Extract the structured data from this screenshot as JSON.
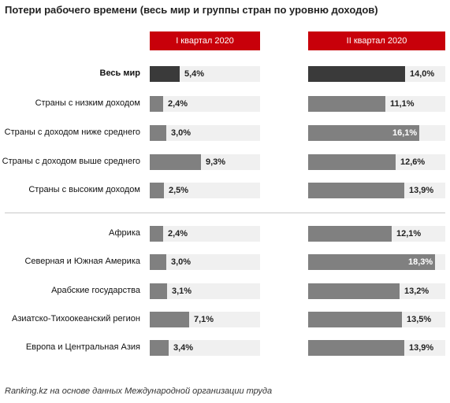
{
  "chart_data": {
    "type": "bar",
    "title": "Потери рабочего времени (весь мир и группы стран по уровню доходов)",
    "panels": [
      "I квартал 2020",
      "II квартал 2020"
    ],
    "categories": [
      "Весь мир",
      "Страны с низким доходом",
      "Страны с доходом ниже среднего",
      "Страны с доходом выше среднего",
      "Страны с высоким доходом",
      "Африка",
      "Северная и Южная Америка",
      "Арабские государства",
      "Азиатско-Тихоокеанский регион",
      "Европа и Центральная Азия"
    ],
    "series": [
      {
        "name": "I квартал 2020",
        "values": [
          5.4,
          2.4,
          3.0,
          9.3,
          2.5,
          2.4,
          3.0,
          3.1,
          7.1,
          3.4
        ],
        "labels": [
          "5,4%",
          "2,4%",
          "3,0%",
          "9,3%",
          "2,5%",
          "2,4%",
          "3,0%",
          "3,1%",
          "7,1%",
          "3,4%"
        ]
      },
      {
        "name": "II квартал 2020",
        "values": [
          14.0,
          11.1,
          16.1,
          12.6,
          13.9,
          12.1,
          18.3,
          13.2,
          13.5,
          13.9
        ],
        "labels": [
          "14,0%",
          "11,1%",
          "16,1%",
          "12,6%",
          "13,9%",
          "12,1%",
          "18,3%",
          "13,2%",
          "13,5%",
          "13,9%"
        ]
      }
    ],
    "xlim": [
      0,
      20
    ],
    "highlight_category": "Весь мир",
    "grid": false,
    "legend": "none"
  },
  "colors": {
    "header_bg": "#c8000a",
    "bar_default": "#808080",
    "bar_highlight": "#3a3a3a",
    "track": "#f0f0f0"
  },
  "source": "Ranking.kz на основе данных Международной организации труда"
}
